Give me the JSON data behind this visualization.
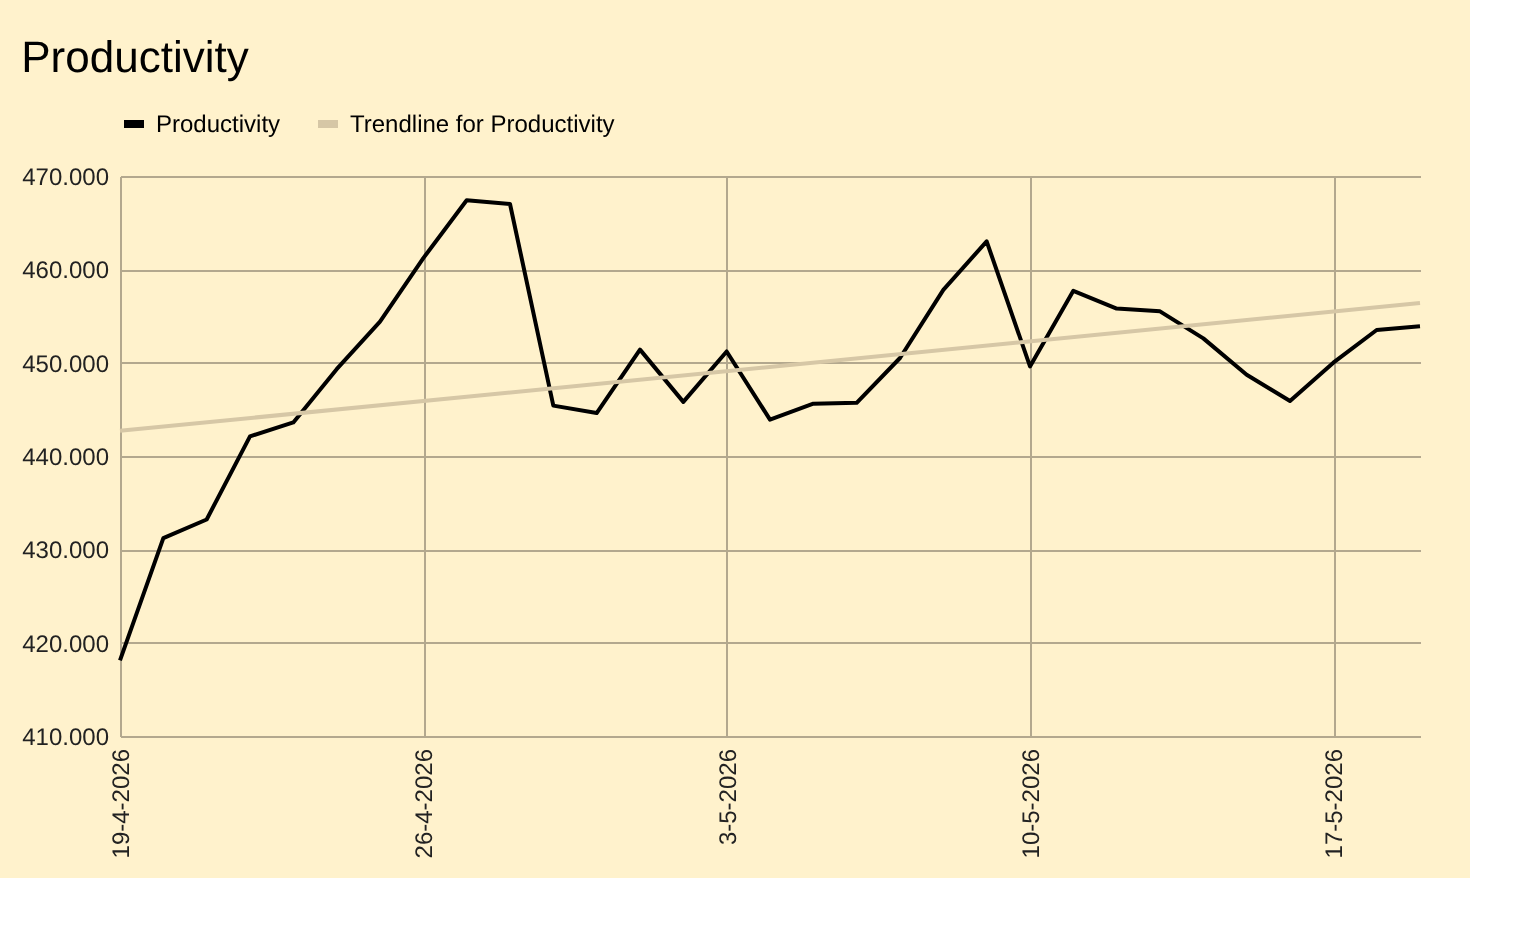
{
  "chart_data": {
    "type": "line",
    "title": "Productivity",
    "x": [
      "2026-04-19",
      "2026-04-20",
      "2026-04-21",
      "2026-04-22",
      "2026-04-23",
      "2026-04-24",
      "2026-04-25",
      "2026-04-26",
      "2026-04-27",
      "2026-04-28",
      "2026-04-29",
      "2026-04-30",
      "2026-05-01",
      "2026-05-02",
      "2026-05-03",
      "2026-05-04",
      "2026-05-05",
      "2026-05-06",
      "2026-05-07",
      "2026-05-08",
      "2026-05-09",
      "2026-05-10",
      "2026-05-11",
      "2026-05-12",
      "2026-05-13",
      "2026-05-14",
      "2026-05-15",
      "2026-05-16",
      "2026-05-17",
      "2026-05-18",
      "2026-05-19"
    ],
    "series": [
      {
        "name": "Productivity",
        "color": "#000000",
        "values": [
          418100,
          431200,
          433200,
          442100,
          443600,
          449300,
          454400,
          461200,
          467400,
          467000,
          445400,
          444600,
          451400,
          445800,
          451200,
          443900,
          445600,
          445700,
          450500,
          457800,
          463000,
          449600,
          457700,
          455800,
          455500,
          452600,
          448700,
          445900,
          450000,
          453500,
          453900
        ]
      },
      {
        "name": "Trendline for Productivity",
        "color": "#d6c7a6",
        "x": [
          "2026-04-19",
          "2026-05-19"
        ],
        "values": [
          442700,
          456400
        ]
      }
    ],
    "xlim": [
      "2026-04-19",
      "2026-05-19"
    ],
    "xticks": [
      {
        "value": "2026-04-19",
        "label": "19-4-2026"
      },
      {
        "value": "2026-04-26",
        "label": "26-4-2026"
      },
      {
        "value": "2026-05-03",
        "label": "3-5-2026"
      },
      {
        "value": "2026-05-10",
        "label": "10-5-2026"
      },
      {
        "value": "2026-05-17",
        "label": "17-5-2026"
      }
    ],
    "ylim": [
      410000,
      470000
    ],
    "yticks": [
      {
        "value": 410000,
        "label": "410.000"
      },
      {
        "value": 420000,
        "label": "420.000"
      },
      {
        "value": 430000,
        "label": "430.000"
      },
      {
        "value": 440000,
        "label": "440.000"
      },
      {
        "value": 450000,
        "label": "450.000"
      },
      {
        "value": 460000,
        "label": "460.000"
      },
      {
        "value": 470000,
        "label": "470.000"
      }
    ],
    "grid": true,
    "legend": "top",
    "marker": "none",
    "line_style": "solid"
  }
}
